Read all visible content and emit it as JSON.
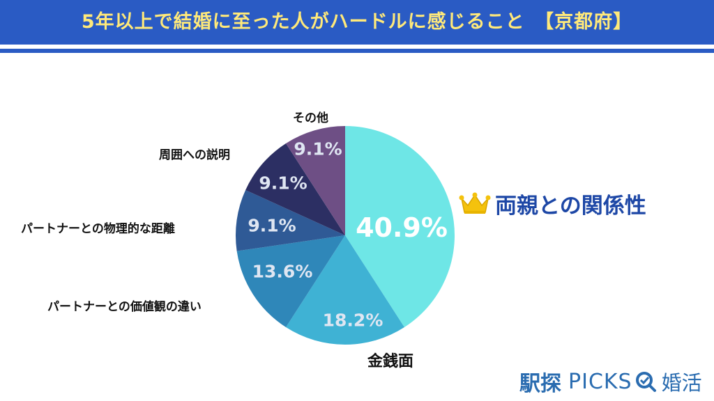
{
  "title": "5年以上で結婚に至った人がハードルに感じること　【京都府】",
  "highlight_label": "両親との関係性",
  "brand": {
    "jp": "駅探",
    "picks": "PICKS",
    "konkatsu": "婚活"
  },
  "colors": {
    "header": "#2a5bc4",
    "title_text": "#ffe97a",
    "highlight_text": "#1d47a6",
    "crown": "#f4c20d"
  },
  "chart_data": {
    "type": "pie",
    "unit": "%",
    "slices": [
      {
        "label": "両親との関係性",
        "value": 40.9,
        "display": "40.9%",
        "color": "#6ee6e6"
      },
      {
        "label": "金銭面",
        "value": 18.2,
        "display": "18.2%",
        "color": "#3fb2d4"
      },
      {
        "label": "パートナーとの価値観の違い",
        "value": 13.6,
        "display": "13.6%",
        "color": "#2f87b9"
      },
      {
        "label": "パートナーとの物理的な距離",
        "value": 9.1,
        "display": "9.1%",
        "color": "#2f5a96"
      },
      {
        "label": "周囲への説明",
        "value": 9.1,
        "display": "9.1%",
        "color": "#2c2f63"
      },
      {
        "label": "その他",
        "value": 9.1,
        "display": "9.1%",
        "color": "#6e4f85"
      }
    ]
  }
}
